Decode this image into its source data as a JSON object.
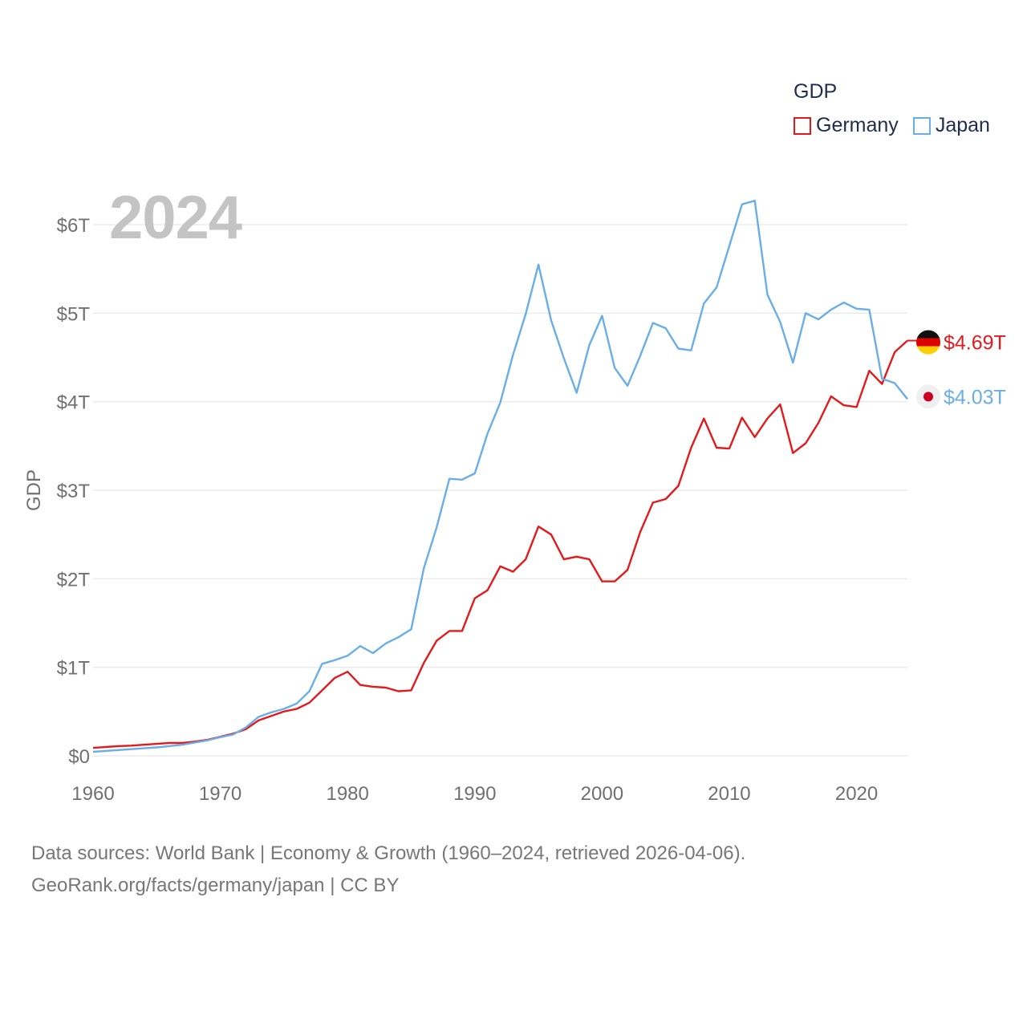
{
  "legend": {
    "title": "GDP",
    "items": [
      {
        "label": "Germany",
        "color": "#e31a1c"
      },
      {
        "label": "Japan",
        "color": "#6aaee8"
      }
    ]
  },
  "year_label": "2024",
  "source": {
    "line1": "Data sources: World Bank | Economy & Growth (1960–2024, retrieved 2026-04-06).",
    "line2": "GeoRank.org/facts/germany/japan | CC BY"
  },
  "chart_data": {
    "type": "line",
    "title": "GDP",
    "xlabel": "",
    "ylabel": "GDP",
    "xlim": [
      1960,
      2024
    ],
    "ylim": [
      0,
      6.5
    ],
    "x_ticks": [
      1960,
      1970,
      1980,
      1990,
      2000,
      2010,
      2020
    ],
    "y_ticks": [
      0,
      1,
      2,
      3,
      4,
      5,
      6
    ],
    "y_tick_labels": [
      "$0",
      "$1T",
      "$2T",
      "$3T",
      "$4T",
      "$5T",
      "$6T"
    ],
    "grid": true,
    "legend_position": "top-right",
    "x": [
      1960,
      1961,
      1962,
      1963,
      1964,
      1965,
      1966,
      1967,
      1968,
      1969,
      1970,
      1971,
      1972,
      1973,
      1974,
      1975,
      1976,
      1977,
      1978,
      1979,
      1980,
      1981,
      1982,
      1983,
      1984,
      1985,
      1986,
      1987,
      1988,
      1989,
      1990,
      1991,
      1992,
      1993,
      1994,
      1995,
      1996,
      1997,
      1998,
      1999,
      2000,
      2001,
      2002,
      2003,
      2004,
      2005,
      2006,
      2007,
      2008,
      2009,
      2010,
      2011,
      2012,
      2013,
      2014,
      2015,
      2016,
      2017,
      2018,
      2019,
      2020,
      2021,
      2022,
      2023,
      2024
    ],
    "series": [
      {
        "name": "Germany",
        "color": "#e31a1c",
        "end_label": "$4.69T",
        "values": [
          0.09,
          0.1,
          0.11,
          0.115,
          0.125,
          0.135,
          0.145,
          0.145,
          0.16,
          0.18,
          0.215,
          0.25,
          0.3,
          0.4,
          0.45,
          0.5,
          0.53,
          0.6,
          0.74,
          0.88,
          0.95,
          0.8,
          0.78,
          0.77,
          0.73,
          0.74,
          1.05,
          1.3,
          1.41,
          1.41,
          1.78,
          1.87,
          2.14,
          2.08,
          2.22,
          2.59,
          2.5,
          2.22,
          2.25,
          2.22,
          1.97,
          1.97,
          2.1,
          2.53,
          2.86,
          2.9,
          3.05,
          3.48,
          3.81,
          3.48,
          3.47,
          3.82,
          3.6,
          3.81,
          3.97,
          3.42,
          3.53,
          3.76,
          4.06,
          3.96,
          3.94,
          4.35,
          4.2,
          4.56,
          4.69
        ]
      },
      {
        "name": "Japan",
        "color": "#6aaee8",
        "end_label": "$4.03T",
        "values": [
          0.045,
          0.055,
          0.065,
          0.075,
          0.085,
          0.095,
          0.11,
          0.125,
          0.15,
          0.175,
          0.21,
          0.24,
          0.32,
          0.44,
          0.49,
          0.53,
          0.59,
          0.73,
          1.04,
          1.08,
          1.13,
          1.24,
          1.16,
          1.27,
          1.34,
          1.43,
          2.12,
          2.58,
          3.13,
          3.12,
          3.19,
          3.64,
          3.99,
          4.53,
          4.99,
          5.55,
          4.92,
          4.49,
          4.1,
          4.64,
          4.97,
          4.38,
          4.18,
          4.52,
          4.89,
          4.83,
          4.6,
          4.58,
          5.11,
          5.29,
          5.76,
          6.23,
          6.27,
          5.21,
          4.9,
          4.44,
          5.0,
          4.93,
          5.04,
          5.12,
          5.05,
          5.04,
          4.26,
          4.21,
          4.03
        ]
      }
    ]
  }
}
